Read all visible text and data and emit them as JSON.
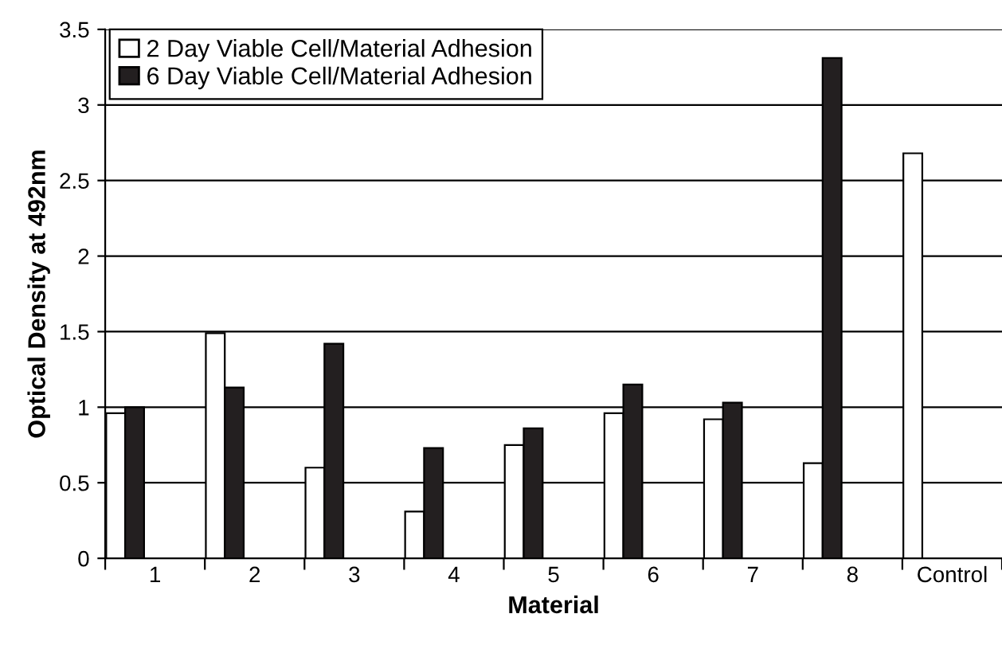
{
  "chart_data": {
    "type": "bar",
    "xlabel": "Material",
    "ylabel": "Optical Density at 492nm",
    "categories": [
      "1",
      "2",
      "3",
      "4",
      "5",
      "6",
      "7",
      "8",
      "Control"
    ],
    "series": [
      {
        "name": "2 Day Viable Cell/Material Adhesion",
        "color": "#ffffff",
        "values": [
          0.96,
          1.49,
          0.6,
          0.31,
          0.75,
          0.96,
          0.92,
          0.63,
          2.68
        ]
      },
      {
        "name": "6 Day Viable Cell/Material Adhesion",
        "color": "#231f20",
        "values": [
          1.0,
          1.13,
          1.42,
          0.73,
          0.86,
          1.15,
          1.03,
          3.31,
          null
        ]
      }
    ],
    "ylim": [
      0,
      3.5
    ],
    "yticks": [
      0,
      0.5,
      1,
      1.5,
      2,
      2.5,
      3,
      3.5
    ],
    "grid": "y",
    "legend": "top"
  }
}
